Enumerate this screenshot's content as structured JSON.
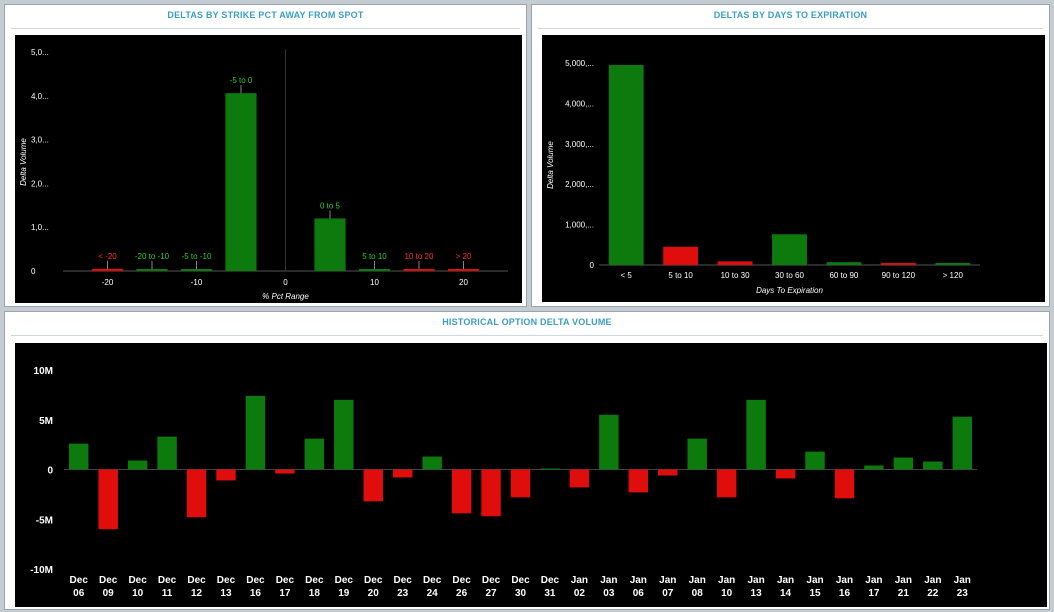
{
  "colors": {
    "positive": "#0d7a0d",
    "negative": "#e00d0d",
    "bg": "#000000",
    "axis_text": "#ffffff",
    "title": "#3a9ec4",
    "pos_label": "#33cc33",
    "neg_label": "#ff3333"
  },
  "panels": {
    "strike": {
      "title": "DELTAS BY STRIKE PCT AWAY FROM SPOT"
    },
    "expiration": {
      "title": "DELTAS BY DAYS TO EXPIRATION"
    },
    "historical": {
      "title": "HISTORICAL OPTION DELTA VOLUME"
    }
  },
  "chart_data": [
    {
      "type": "bar",
      "title": "DELTAS BY STRIKE PCT AWAY FROM SPOT",
      "xlabel": "% Pct Range",
      "ylabel": "Delta Volume",
      "xlim": [
        -25,
        25
      ],
      "ylim": [
        0,
        5000
      ],
      "x_ticks": [
        -20,
        -10,
        0,
        10,
        20
      ],
      "y_ticks": [
        0,
        1000,
        2000,
        3000,
        4000,
        5000
      ],
      "y_tick_labels": [
        "0",
        "1,0...",
        "2,0...",
        "3,0...",
        "4,0...",
        "5,0..."
      ],
      "bars": [
        {
          "label": "< -20",
          "center": -20,
          "value": 50,
          "sign": "negative"
        },
        {
          "label": "-20 to -10",
          "center": -15,
          "value": 40,
          "sign": "positive"
        },
        {
          "label": "-5 to -10",
          "center": -10,
          "value": 20,
          "sign": "positive"
        },
        {
          "label": "-5 to 0",
          "center": -5,
          "value": 4060,
          "sign": "positive"
        },
        {
          "label": "0 to 5",
          "center": 5,
          "value": 1200,
          "sign": "positive"
        },
        {
          "label": "5 to 10",
          "center": 10,
          "value": 20,
          "sign": "positive"
        },
        {
          "label": "10 to 20",
          "center": 15,
          "value": 30,
          "sign": "negative"
        },
        {
          "label": "> 20",
          "center": 20,
          "value": 10,
          "sign": "negative"
        }
      ]
    },
    {
      "type": "bar",
      "title": "DELTAS BY DAYS TO EXPIRATION",
      "xlabel": "Days To Expiration",
      "ylabel": "Delta Volume",
      "ylim": [
        0,
        5000
      ],
      "y_ticks": [
        0,
        1000,
        2000,
        3000,
        4000,
        5000
      ],
      "y_tick_labels": [
        "0",
        "1,000,...",
        "2,000,...",
        "3,000,...",
        "4,000,...",
        "5,000,..."
      ],
      "categories": [
        "< 5",
        "5 to 10",
        "10 to 30",
        "30 to 60",
        "60 to 90",
        "90 to 120",
        "> 120"
      ],
      "values": [
        4950,
        450,
        90,
        760,
        70,
        50,
        25
      ],
      "signs": [
        "positive",
        "negative",
        "negative",
        "positive",
        "positive",
        "negative",
        "positive"
      ]
    },
    {
      "type": "bar",
      "title": "HISTORICAL OPTION DELTA VOLUME",
      "ylim": [
        -10000000,
        10000000
      ],
      "y_ticks": [
        10000000,
        5000000,
        0,
        -5000000,
        -10000000
      ],
      "y_tick_labels": [
        "10M",
        "5M",
        "0",
        "-5M",
        "-10M"
      ],
      "categories": [
        [
          "Dec",
          "06"
        ],
        [
          "Dec",
          "09"
        ],
        [
          "Dec",
          "10"
        ],
        [
          "Dec",
          "11"
        ],
        [
          "Dec",
          "12"
        ],
        [
          "Dec",
          "13"
        ],
        [
          "Dec",
          "16"
        ],
        [
          "Dec",
          "17"
        ],
        [
          "Dec",
          "18"
        ],
        [
          "Dec",
          "19"
        ],
        [
          "Dec",
          "20"
        ],
        [
          "Dec",
          "23"
        ],
        [
          "Dec",
          "24"
        ],
        [
          "Dec",
          "26"
        ],
        [
          "Dec",
          "27"
        ],
        [
          "Dec",
          "30"
        ],
        [
          "Dec",
          "31"
        ],
        [
          "Jan",
          "02"
        ],
        [
          "Jan",
          "03"
        ],
        [
          "Jan",
          "06"
        ],
        [
          "Jan",
          "07"
        ],
        [
          "Jan",
          "08"
        ],
        [
          "Jan",
          "10"
        ],
        [
          "Jan",
          "13"
        ],
        [
          "Jan",
          "14"
        ],
        [
          "Jan",
          "15"
        ],
        [
          "Jan",
          "16"
        ],
        [
          "Jan",
          "17"
        ],
        [
          "Jan",
          "21"
        ],
        [
          "Jan",
          "22"
        ],
        [
          "Jan",
          "23"
        ]
      ],
      "values": [
        2600000,
        -6000000,
        900000,
        3300000,
        -4800000,
        -1100000,
        7400000,
        -400000,
        3100000,
        7000000,
        -3200000,
        -800000,
        1300000,
        -4400000,
        -4700000,
        -2800000,
        100000,
        -1800000,
        5500000,
        -2300000,
        -600000,
        3100000,
        -2800000,
        7000000,
        -900000,
        1800000,
        -2900000,
        400000,
        1200000,
        800000,
        5300000
      ]
    }
  ]
}
